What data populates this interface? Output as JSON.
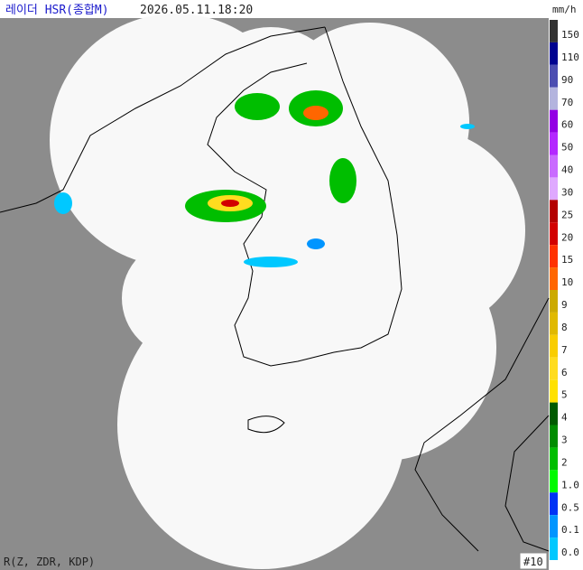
{
  "header": {
    "title": "레이더 HSR(종합M)",
    "timestamp": "2026.05.11.18:20"
  },
  "legend": {
    "unit": "mm/h",
    "labels": [
      "150",
      "110",
      "90",
      "70",
      "60",
      "50",
      "40",
      "30",
      "25",
      "20",
      "15",
      "10",
      "9",
      "8",
      "7",
      "6",
      "5",
      "4",
      "3",
      "2",
      "1.0",
      "0.5",
      "0.1",
      "0.0"
    ],
    "colors": [
      "#333333",
      "#000390",
      "#4c4eb1",
      "#b3b4de",
      "#9300e4",
      "#b329ff",
      "#c96bff",
      "#dfa9ff",
      "#b30000",
      "#d20000",
      "#ff3200",
      "#ff6600",
      "#ccaa00",
      "#e0b900",
      "#f9cd00",
      "#ffdc1f",
      "#ffe100",
      "#005a00",
      "#008c00",
      "#00be00",
      "#00fa00",
      "#0033f5",
      "#0095ff",
      "#00c8ff"
    ]
  },
  "footer": {
    "method": "R(Z, ZDR, KDP)",
    "frame": "#10"
  }
}
